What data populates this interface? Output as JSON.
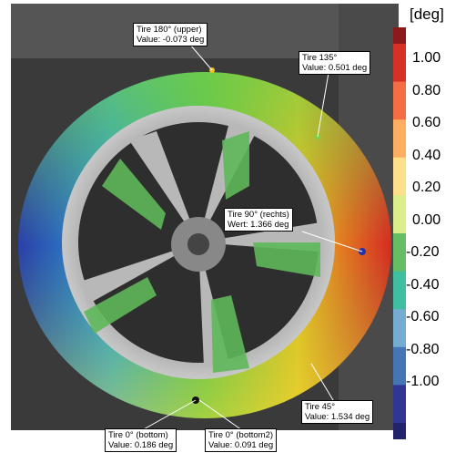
{
  "colorbar": {
    "unit": "[deg]",
    "ticks": [
      "1.00",
      "0.80",
      "0.60",
      "0.40",
      "0.20",
      "0.00",
      "-0.20",
      "-0.40",
      "-0.60",
      "-0.80",
      "-1.00"
    ],
    "colors": [
      "#8b1a1a",
      "#d73027",
      "#f46d43",
      "#fdae61",
      "#fee08b",
      "#d9ef8b",
      "#66bd63",
      "#3fbf9f",
      "#74add1",
      "#4575b4",
      "#313695",
      "#23236b"
    ]
  },
  "annotations": [
    {
      "title": "Tire 180° (upper)",
      "value": "Value: -0.073 deg"
    },
    {
      "title": "Tire 135°",
      "value": "Value: 0.501 deg"
    },
    {
      "title": "Tire 90° (rechts)",
      "value": "Wert: 1.366 deg"
    },
    {
      "title": "Tire 45°",
      "value": "Value: 1.534 deg"
    },
    {
      "title": "Tire 0° (bottom)",
      "value": "Value: 0.186 deg"
    },
    {
      "title": "Tire 0° (bottom2)",
      "value": "Value: 0.091 deg"
    }
  ]
}
